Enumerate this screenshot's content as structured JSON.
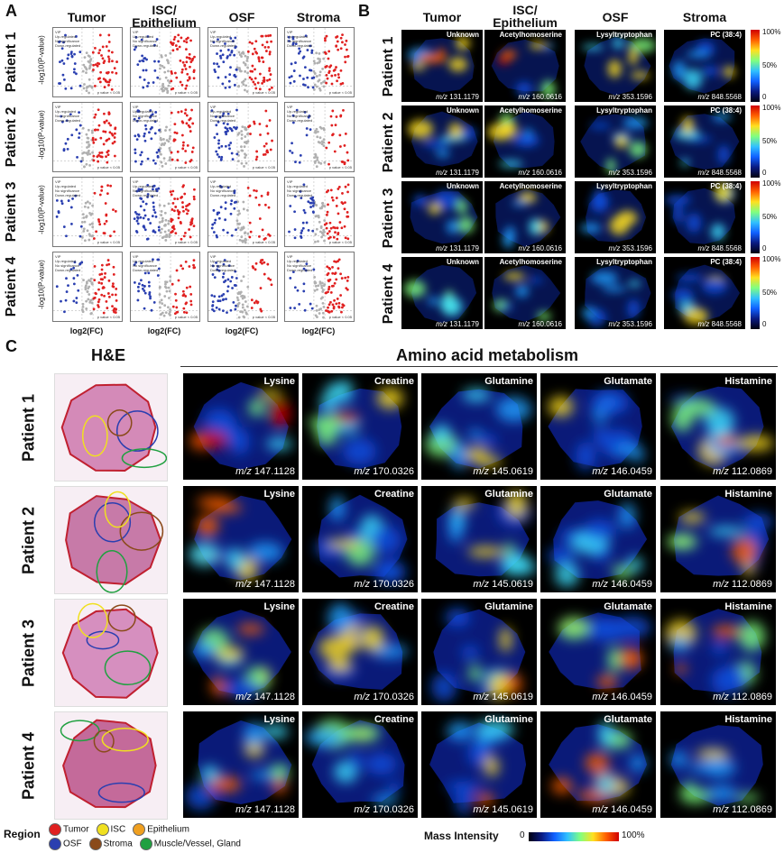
{
  "panel_letters": {
    "a": "A",
    "b": "B",
    "c": "C"
  },
  "panelA": {
    "columns": [
      "Tumor",
      "ISC/\nEpithelium",
      "OSF",
      "Stroma"
    ],
    "rows": [
      "Patient 1",
      "Patient 2",
      "Patient 3",
      "Patient 4"
    ],
    "ylabel": "-log10(P-value)",
    "xlabel": "log2(FC)",
    "legend_title": "VIP",
    "legend_items": [
      "Up-regulated",
      "No significance",
      "Down-regulated"
    ],
    "pvalue_texts": [
      [
        "p value < 0.05",
        "p value < 0.05",
        "p value < 0.05",
        "p value < 0.05"
      ],
      [
        "p value < 0.05",
        "p value < 0.05",
        "p value < 0.05",
        "p value < 0.05"
      ],
      [
        "p value < 0.05",
        "p value < 0.05",
        "p value < 0.05",
        "p value < 0.05"
      ],
      [
        "p value < 0.05",
        "p value < 0.05",
        "p value < 0.05",
        "p value < 0.05"
      ]
    ],
    "colors": {
      "up": "#e02020",
      "down": "#2a3fb0",
      "ns": "#b0b0b0"
    }
  },
  "panelB": {
    "columns": [
      "Tumor",
      "ISC/\nEpithelium",
      "OSF",
      "Stroma"
    ],
    "rows": [
      "Patient 1",
      "Patient 2",
      "Patient 3",
      "Patient 4"
    ],
    "metabolites": [
      "Unknown",
      "Acetylhomoserine",
      "Lysyltryptophan",
      "PC (38:4)"
    ],
    "mz_prefix": "m/z",
    "mz_values": [
      "131.1179",
      "160.0616",
      "353.1596",
      "848.5568"
    ],
    "colorbar_ticks": [
      "100%",
      "50%",
      "0"
    ]
  },
  "panelC": {
    "he_title": "H&E",
    "title": "Amino acid metabolism",
    "rows": [
      "Patient 1",
      "Patient 2",
      "Patient 3",
      "Patient 4"
    ],
    "metabolites": [
      "Lysine",
      "Creatine",
      "Glutamine",
      "Glutamate",
      "Histamine"
    ],
    "mz_prefix": "m/z",
    "mz_values": [
      "147.1128",
      "170.0326",
      "145.0619",
      "146.0459",
      "112.0869"
    ],
    "region_label": "Region",
    "regions": [
      {
        "name": "Tumor",
        "color": "#e02020"
      },
      {
        "name": "ISC",
        "color": "#f0e020"
      },
      {
        "name": "Epithelium",
        "color": "#f0a020"
      },
      {
        "name": "OSF",
        "color": "#2a3fb0"
      },
      {
        "name": "Stroma",
        "color": "#8a4a1a"
      },
      {
        "name": "Muscle/Vessel, Gland",
        "color": "#20a040"
      }
    ],
    "mass_intensity_label": "Mass Intensity",
    "mass_intensity_min": "0",
    "mass_intensity_max": "100%"
  }
}
